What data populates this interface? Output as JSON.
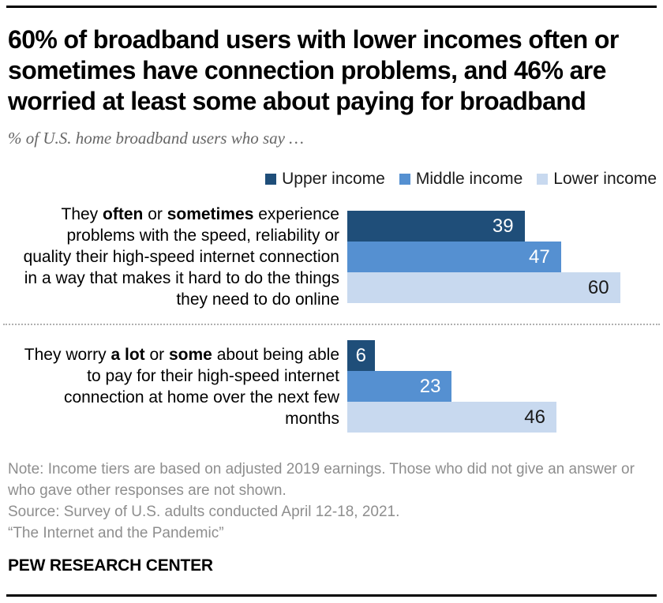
{
  "header": {
    "title_lines": [
      "60% of broadband users with lower incomes often or",
      "sometimes have connection problems, and 46% are",
      "worried at least some about paying for broadband"
    ],
    "subtitle": "% of U.S. home broadband users who say …"
  },
  "chart_data": {
    "type": "bar",
    "orientation": "horizontal",
    "value_unit": "%",
    "grid": false,
    "axes_hidden": true,
    "xlim": [
      0,
      69
    ],
    "data_labels": "inside-end",
    "legend_position": "top-right",
    "categories": [
      "They often or sometimes experience problems with the speed, reliability or quality their high-speed internet connection in a way that makes it hard to do the things they need to do online",
      "They worry a lot or some about being able to pay for their high-speed internet connection at home over the next few months"
    ],
    "category_label_segments": [
      [
        {
          "text": "They ",
          "bold": false
        },
        {
          "text": "often",
          "bold": true
        },
        {
          "text": " or ",
          "bold": false
        },
        {
          "text": "sometimes",
          "bold": true
        },
        {
          "text": " experience problems with the speed, reliability or quality their high-speed internet connection in a way that makes it hard to do the things they need to do online",
          "bold": false
        }
      ],
      [
        {
          "text": "They worry ",
          "bold": false
        },
        {
          "text": "a lot",
          "bold": true
        },
        {
          "text": " or ",
          "bold": false
        },
        {
          "text": "some",
          "bold": true
        },
        {
          "text": " about being able to pay for their high-speed internet connection at home over the next few months",
          "bold": false
        }
      ]
    ],
    "series": [
      {
        "name": "Upper income",
        "color": "#1F4E79",
        "label_color": "#ffffff",
        "values": [
          39,
          6
        ]
      },
      {
        "name": "Middle income",
        "color": "#5590D1",
        "label_color": "#ffffff",
        "values": [
          47,
          23
        ]
      },
      {
        "name": "Lower income",
        "color": "#C8D9EF",
        "label_color": "#1a1a1a",
        "values": [
          60,
          46
        ]
      }
    ]
  },
  "footer": {
    "note": "Note: Income tiers are based on adjusted 2019 earnings. Those who did not give an answer or who gave other responses are not shown.",
    "source": "Source: Survey of U.S. adults conducted April 12-18, 2021.",
    "quote": "“The Internet and the Pandemic”",
    "brand": "PEW RESEARCH CENTER"
  }
}
